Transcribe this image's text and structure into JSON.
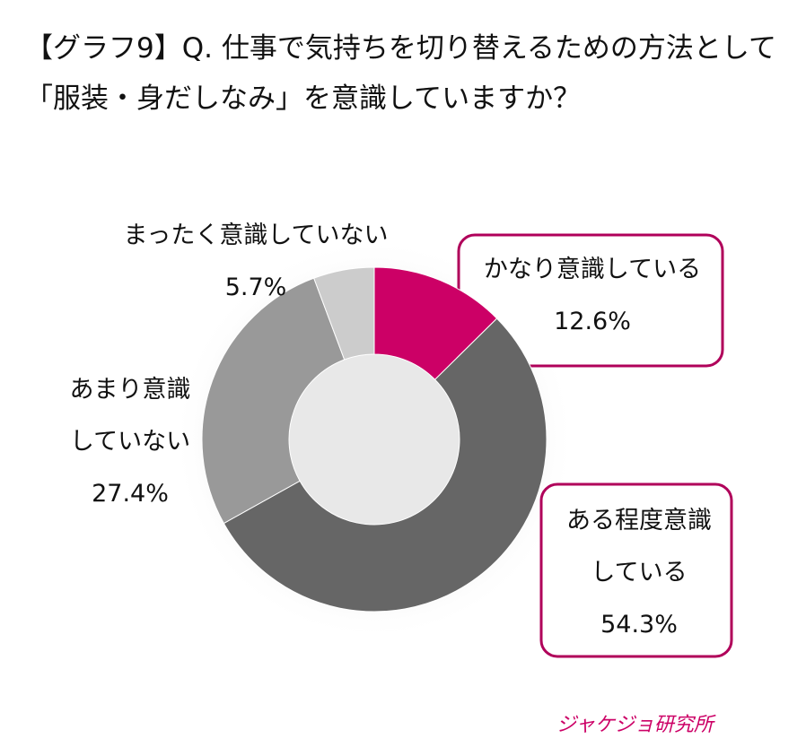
{
  "chart_data": {
    "type": "donut",
    "title": "【グラフ9】Q. 仕事で気持ちを切り替えるための方法として「服装・身だしなみ」を意識していますか？",
    "categories": [
      "かなり意識している",
      "ある程度意識している",
      "あまり意識していない",
      "まったく意識していない"
    ],
    "values": [
      12.6,
      54.3,
      27.4,
      5.7
    ],
    "value_labels": [
      "12.6%",
      "54.3%",
      "27.4%",
      "5.7%"
    ],
    "colors": [
      "#cc0066",
      "#666666",
      "#999999",
      "#cccccc"
    ],
    "logo": "ジャケジョ研究所"
  }
}
